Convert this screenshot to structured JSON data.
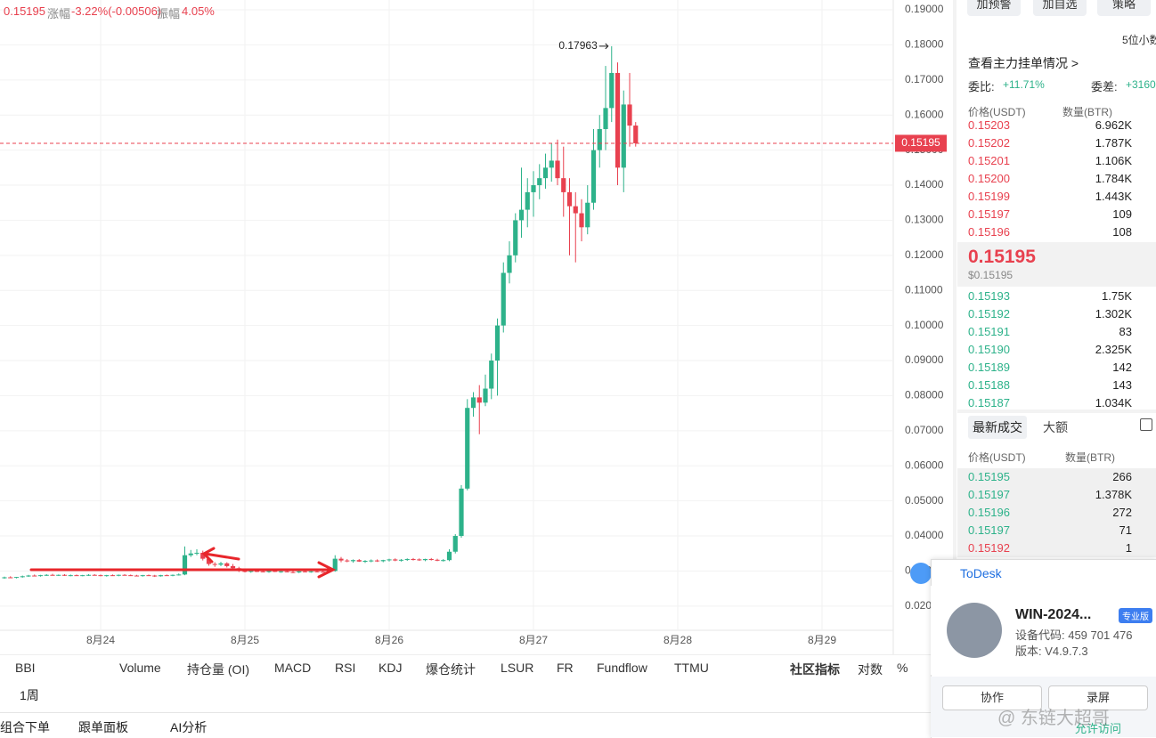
{
  "header": {
    "price": "0.15195",
    "change_label": "涨幅",
    "change": "-3.22%(-0.00506)",
    "amp_label": "振幅",
    "amp": "4.05%"
  },
  "chart_data": {
    "type": "candlestick",
    "up_color": "#2db28a",
    "down_color": "#e8414f",
    "candles": [
      [
        0.028,
        0.0284,
        0.0278,
        0.0282
      ],
      [
        0.0282,
        0.0285,
        0.028,
        0.0281
      ],
      [
        0.0281,
        0.0283,
        0.0279,
        0.0283
      ],
      [
        0.0283,
        0.0287,
        0.0281,
        0.0285
      ],
      [
        0.0285,
        0.0289,
        0.0283,
        0.0287
      ],
      [
        0.0287,
        0.029,
        0.0285,
        0.0286
      ],
      [
        0.0286,
        0.0289,
        0.0284,
        0.0288
      ],
      [
        0.0288,
        0.0291,
        0.0286,
        0.0289
      ],
      [
        0.0289,
        0.0292,
        0.0287,
        0.0288
      ],
      [
        0.0288,
        0.029,
        0.0286,
        0.0289
      ],
      [
        0.0289,
        0.0291,
        0.0286,
        0.0287
      ],
      [
        0.0287,
        0.029,
        0.0285,
        0.0288
      ],
      [
        0.0288,
        0.029,
        0.0286,
        0.0287
      ],
      [
        0.0287,
        0.0289,
        0.0285,
        0.0288
      ],
      [
        0.0288,
        0.0291,
        0.0286,
        0.0289
      ],
      [
        0.0289,
        0.0291,
        0.0287,
        0.0288
      ],
      [
        0.0288,
        0.029,
        0.0285,
        0.0286
      ],
      [
        0.0286,
        0.0289,
        0.0284,
        0.0288
      ],
      [
        0.0288,
        0.029,
        0.0286,
        0.0287
      ],
      [
        0.0287,
        0.029,
        0.0285,
        0.0289
      ],
      [
        0.0289,
        0.0291,
        0.0287,
        0.0288
      ],
      [
        0.0288,
        0.029,
        0.0286,
        0.0287
      ],
      [
        0.0287,
        0.0289,
        0.0285,
        0.0286
      ],
      [
        0.0286,
        0.0289,
        0.0284,
        0.0288
      ],
      [
        0.0288,
        0.029,
        0.0286,
        0.0287
      ],
      [
        0.0287,
        0.0289,
        0.0283,
        0.0285
      ],
      [
        0.0285,
        0.0289,
        0.0284,
        0.0288
      ],
      [
        0.0288,
        0.029,
        0.0286,
        0.0287
      ],
      [
        0.0287,
        0.029,
        0.0285,
        0.0289
      ],
      [
        0.0289,
        0.0293,
        0.0287,
        0.029
      ],
      [
        0.029,
        0.037,
        0.0288,
        0.0345
      ],
      [
        0.0345,
        0.036,
        0.034,
        0.035
      ],
      [
        0.035,
        0.0362,
        0.0345,
        0.0352
      ],
      [
        0.0352,
        0.0358,
        0.033,
        0.0335
      ],
      [
        0.0335,
        0.034,
        0.0315,
        0.032
      ],
      [
        0.032,
        0.0325,
        0.0312,
        0.0318
      ],
      [
        0.0318,
        0.0326,
        0.0314,
        0.0322
      ],
      [
        0.0322,
        0.0325,
        0.031,
        0.0314
      ],
      [
        0.0314,
        0.032,
        0.0305,
        0.0308
      ],
      [
        0.0308,
        0.0312,
        0.0297,
        0.03
      ],
      [
        0.03,
        0.0303,
        0.0296,
        0.0298
      ],
      [
        0.0298,
        0.0302,
        0.0295,
        0.03
      ],
      [
        0.03,
        0.0303,
        0.0297,
        0.0299
      ],
      [
        0.0299,
        0.0302,
        0.0296,
        0.0297
      ],
      [
        0.0297,
        0.0301,
        0.0295,
        0.03
      ],
      [
        0.03,
        0.0302,
        0.0297,
        0.0298
      ],
      [
        0.0298,
        0.0301,
        0.0295,
        0.0299
      ],
      [
        0.0299,
        0.0302,
        0.0296,
        0.0297
      ],
      [
        0.0297,
        0.03,
        0.0294,
        0.0296
      ],
      [
        0.0296,
        0.03,
        0.0294,
        0.0299
      ],
      [
        0.0299,
        0.0301,
        0.0296,
        0.0297
      ],
      [
        0.0297,
        0.03,
        0.0295,
        0.0299
      ],
      [
        0.0299,
        0.0302,
        0.0296,
        0.0298
      ],
      [
        0.0298,
        0.0301,
        0.0295,
        0.0297
      ],
      [
        0.0297,
        0.0301,
        0.0295,
        0.03
      ],
      [
        0.03,
        0.0345,
        0.0298,
        0.0335
      ],
      [
        0.0335,
        0.034,
        0.0325,
        0.033
      ],
      [
        0.033,
        0.0334,
        0.0325,
        0.0328
      ],
      [
        0.0328,
        0.0333,
        0.0324,
        0.0331
      ],
      [
        0.0331,
        0.0334,
        0.0326,
        0.0327
      ],
      [
        0.0327,
        0.0331,
        0.0323,
        0.0329
      ],
      [
        0.0329,
        0.0333,
        0.0325,
        0.033
      ],
      [
        0.033,
        0.0333,
        0.0326,
        0.0328
      ],
      [
        0.0328,
        0.0332,
        0.0325,
        0.0331
      ],
      [
        0.0331,
        0.0335,
        0.0327,
        0.0333
      ],
      [
        0.0333,
        0.0336,
        0.0328,
        0.033
      ],
      [
        0.033,
        0.0334,
        0.0327,
        0.0332
      ],
      [
        0.0332,
        0.0336,
        0.0329,
        0.0334
      ],
      [
        0.0334,
        0.0337,
        0.033,
        0.0333
      ],
      [
        0.0333,
        0.0336,
        0.0329,
        0.0331
      ],
      [
        0.0331,
        0.0335,
        0.0328,
        0.0334
      ],
      [
        0.0334,
        0.0337,
        0.033,
        0.0332
      ],
      [
        0.0332,
        0.0335,
        0.0328,
        0.033
      ],
      [
        0.033,
        0.0334,
        0.0327,
        0.0331
      ],
      [
        0.0331,
        0.0362,
        0.0328,
        0.0355
      ],
      [
        0.0355,
        0.0405,
        0.035,
        0.04
      ],
      [
        0.04,
        0.0545,
        0.0395,
        0.0535
      ],
      [
        0.0535,
        0.079,
        0.053,
        0.0765
      ],
      [
        0.0765,
        0.081,
        0.074,
        0.0795
      ],
      [
        0.0795,
        0.083,
        0.069,
        0.078
      ],
      [
        0.078,
        0.086,
        0.077,
        0.082
      ],
      [
        0.082,
        0.092,
        0.079,
        0.09
      ],
      [
        0.09,
        0.102,
        0.08,
        0.1
      ],
      [
        0.1,
        0.118,
        0.098,
        0.115
      ],
      [
        0.115,
        0.124,
        0.112,
        0.12
      ],
      [
        0.12,
        0.132,
        0.118,
        0.13
      ],
      [
        0.13,
        0.145,
        0.125,
        0.133
      ],
      [
        0.133,
        0.142,
        0.128,
        0.138
      ],
      [
        0.138,
        0.144,
        0.131,
        0.14
      ],
      [
        0.14,
        0.146,
        0.136,
        0.142
      ],
      [
        0.142,
        0.149,
        0.139,
        0.145
      ],
      [
        0.145,
        0.152,
        0.141,
        0.147
      ],
      [
        0.147,
        0.153,
        0.14,
        0.142
      ],
      [
        0.142,
        0.151,
        0.131,
        0.138
      ],
      [
        0.138,
        0.142,
        0.12,
        0.134
      ],
      [
        0.134,
        0.138,
        0.118,
        0.132
      ],
      [
        0.132,
        0.136,
        0.124,
        0.128
      ],
      [
        0.128,
        0.14,
        0.126,
        0.135
      ],
      [
        0.135,
        0.156,
        0.133,
        0.15
      ],
      [
        0.15,
        0.16,
        0.145,
        0.156
      ],
      [
        0.156,
        0.174,
        0.15,
        0.162
      ],
      [
        0.162,
        0.17963,
        0.158,
        0.172
      ],
      [
        0.172,
        0.175,
        0.14,
        0.145
      ],
      [
        0.145,
        0.167,
        0.138,
        0.163
      ],
      [
        0.163,
        0.172,
        0.151,
        0.157
      ],
      [
        0.157,
        0.158,
        0.151,
        0.15195
      ]
    ],
    "high_label": "0.17963",
    "last_price": {
      "value": 0.15195,
      "label": "0.15195"
    },
    "xlim": [
      -0.74,
      147.85
    ],
    "xticks": [
      {
        "value": 16,
        "label": "8月24"
      },
      {
        "value": 40,
        "label": "8月25"
      },
      {
        "value": 64,
        "label": "8月26"
      },
      {
        "value": 88,
        "label": "8月27"
      },
      {
        "value": 112,
        "label": "8月28"
      },
      {
        "value": 136,
        "label": "8月29"
      }
    ],
    "ylim": [
      0.0131,
      0.1928
    ],
    "yticks": [
      {
        "value": 0.02,
        "label": "0.02000"
      },
      {
        "value": 0.03,
        "label": "0.03000"
      },
      {
        "value": 0.04,
        "label": "0.04000"
      },
      {
        "value": 0.05,
        "label": "0.05000"
      },
      {
        "value": 0.06,
        "label": "0.06000"
      },
      {
        "value": 0.07,
        "label": "0.07000"
      },
      {
        "value": 0.08,
        "label": "0.08000"
      },
      {
        "value": 0.09,
        "label": "0.09000"
      },
      {
        "value": 0.1,
        "label": "0.10000"
      },
      {
        "value": 0.11,
        "label": "0.11000"
      },
      {
        "value": 0.12,
        "label": "0.12000"
      },
      {
        "value": 0.13,
        "label": "0.13000"
      },
      {
        "value": 0.14,
        "label": "0.14000"
      },
      {
        "value": 0.15,
        "label": "0.15000"
      },
      {
        "value": 0.16,
        "label": "0.16000"
      },
      {
        "value": 0.17,
        "label": "0.17000"
      },
      {
        "value": 0.18,
        "label": "0.18000"
      },
      {
        "value": 0.19,
        "label": "0.19000"
      }
    ],
    "grid": true
  },
  "side_buttons": [
    "加预警",
    "加自选",
    "策略"
  ],
  "decimals": "5位小数",
  "main_orders_link": "查看主力挂单情况 >",
  "ratio": {
    "label": "委比:",
    "value": "+11.71%",
    "diff_label": "委差:",
    "diff": "+3160"
  },
  "orderbook": {
    "price_header": "价格(USDT)",
    "qty_header": "数量(BTR)",
    "asks": [
      [
        "0.15203",
        "6.962K"
      ],
      [
        "0.15202",
        "1.787K"
      ],
      [
        "0.15201",
        "1.106K"
      ],
      [
        "0.15200",
        "1.784K"
      ],
      [
        "0.15199",
        "1.443K"
      ],
      [
        "0.15197",
        "109"
      ],
      [
        "0.15196",
        "108"
      ]
    ],
    "mid": "0.15195",
    "mid_usd": "$0.15195",
    "bids": [
      [
        "0.15193",
        "1.75K"
      ],
      [
        "0.15192",
        "1.302K"
      ],
      [
        "0.15191",
        "83"
      ],
      [
        "0.15190",
        "2.325K"
      ],
      [
        "0.15189",
        "142"
      ],
      [
        "0.15188",
        "143"
      ],
      [
        "0.15187",
        "1.034K"
      ]
    ]
  },
  "trades": {
    "tabs": [
      "最新成交",
      "大额"
    ],
    "price_header": "价格(USDT)",
    "qty_header": "数量(BTR)",
    "rows": [
      [
        "0.15195",
        "266"
      ],
      [
        "0.15197",
        "1.378K"
      ],
      [
        "0.15196",
        "272"
      ],
      [
        "0.15197",
        "71"
      ],
      [
        "0.15192",
        "1"
      ]
    ],
    "colors": [
      "#2db28a",
      "#2db28a",
      "#2db28a",
      "#2db28a",
      "#e8414f"
    ]
  },
  "indicators": [
    "BBI",
    "Volume",
    "持仓量 (OI)",
    "MACD",
    "RSI",
    "KDJ",
    "爆仓统计",
    "LSUR",
    "FR",
    "Fundflow",
    "TTMU"
  ],
  "indicator_tools": [
    "社区指标",
    "对数",
    "%"
  ],
  "interval_tab": "1周",
  "bottom_tabs": [
    "组合下单",
    "跟单面板",
    "AI分析"
  ],
  "todesk": {
    "brand": "ToDesk",
    "device": "WIN-2024...",
    "badge": "专业版",
    "code": "设备代码: 459 701 476",
    "version": "版本: V4.9.7.3",
    "buttons": [
      "协作",
      "录屏"
    ],
    "allow": "允许访问"
  },
  "watermark": "@ 东链大超哥"
}
